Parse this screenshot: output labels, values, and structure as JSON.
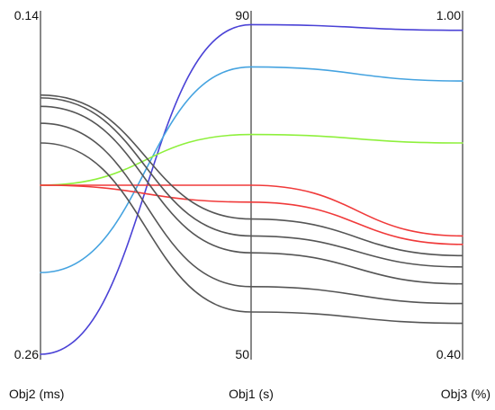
{
  "chart_data": {
    "type": "parallel-coordinates",
    "axes": [
      {
        "label": "Obj2 (ms)",
        "top_label": "0.14",
        "bottom_label": "0.26",
        "min": 0.14,
        "max": 0.26,
        "inverted": true
      },
      {
        "label": "Obj1 (s)",
        "top_label": "90",
        "bottom_label": "50",
        "min": 50,
        "max": 90,
        "inverted": false
      },
      {
        "label": "Obj3 (%)",
        "top_label": "1.00",
        "bottom_label": "0.40",
        "min": 0.4,
        "max": 1.0,
        "inverted": false
      }
    ],
    "series": [
      {
        "color": "#4a42d6",
        "values": [
          0.26,
          89,
          0.975
        ]
      },
      {
        "color": "#45a3e0",
        "values": [
          0.231,
          84,
          0.885
        ]
      },
      {
        "color": "#8ef03c",
        "values": [
          0.2,
          76,
          0.775
        ]
      },
      {
        "color": "#f03a3a",
        "values": [
          0.2,
          70,
          0.61
        ]
      },
      {
        "color": "#f03a3a",
        "values": [
          0.2,
          68,
          0.595
        ]
      },
      {
        "color": "#555555",
        "values": [
          0.168,
          66,
          0.575
        ]
      },
      {
        "color": "#555555",
        "values": [
          0.169,
          64,
          0.555
        ]
      },
      {
        "color": "#555555",
        "values": [
          0.172,
          62,
          0.525
        ]
      },
      {
        "color": "#555555",
        "values": [
          0.178,
          58,
          0.49
        ]
      },
      {
        "color": "#555555",
        "values": [
          0.185,
          55,
          0.455
        ]
      }
    ]
  }
}
